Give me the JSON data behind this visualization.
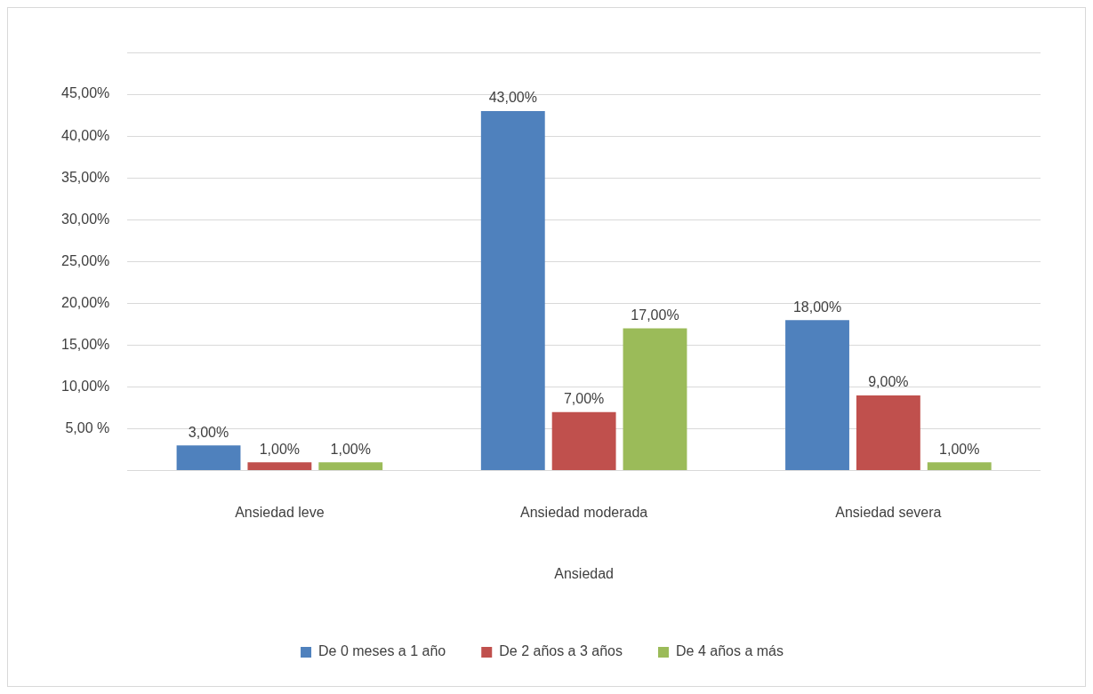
{
  "chart_data": {
    "type": "bar",
    "xlabel": "Ansiedad",
    "categories": [
      "Ansiedad leve",
      "Ansiedad moderada",
      "Ansiedad severa"
    ],
    "series": [
      {
        "name": "De 0 meses a 1 año",
        "color": "#4f81bd",
        "values": [
          3,
          43,
          18
        ],
        "value_labels": [
          "3,00%",
          "43,00%",
          "18,00%"
        ]
      },
      {
        "name": "De 2 años a 3 años",
        "color": "#c0504d",
        "values": [
          1,
          7,
          9
        ],
        "value_labels": [
          "1,00%",
          "7,00%",
          "9,00%"
        ]
      },
      {
        "name": "De 4 años a más",
        "color": "#9bbb59",
        "values": [
          1,
          17,
          1
        ],
        "value_labels": [
          "1,00%",
          "17,00%",
          "1,00%"
        ]
      }
    ],
    "ylim": [
      0,
      50
    ],
    "yticks": [
      {
        "value": 0,
        "label": null
      },
      {
        "value": 5,
        "label": "5,00 %"
      },
      {
        "value": 10,
        "label": "10,00%"
      },
      {
        "value": 15,
        "label": "15,00%"
      },
      {
        "value": 20,
        "label": "20,00%"
      },
      {
        "value": 25,
        "label": "25,00%"
      },
      {
        "value": 30,
        "label": "30,00%"
      },
      {
        "value": 35,
        "label": "35,00%"
      },
      {
        "value": 40,
        "label": "40,00%"
      },
      {
        "value": 45,
        "label": "45,00%"
      },
      {
        "value": 50,
        "label": null
      }
    ],
    "grid": "y",
    "legend": "bottom"
  }
}
